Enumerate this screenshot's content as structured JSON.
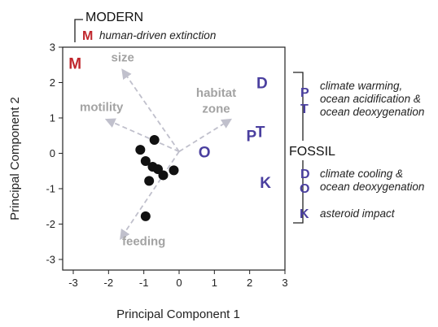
{
  "chart_data": {
    "type": "scatter",
    "xlabel": "Principal Component 1",
    "ylabel": "Principal Component 2",
    "xlim": [
      -3.3,
      3.0
    ],
    "ylim": [
      -3.3,
      3.0
    ],
    "xticks": [
      -3,
      -2,
      -1,
      0,
      1,
      2,
      3
    ],
    "yticks": [
      -3,
      -2,
      -1,
      0,
      1,
      2,
      3
    ],
    "grid": false,
    "points": [
      {
        "x": -0.7,
        "y": 0.38
      },
      {
        "x": -1.1,
        "y": 0.1
      },
      {
        "x": -0.95,
        "y": -0.22
      },
      {
        "x": -0.75,
        "y": -0.38
      },
      {
        "x": -0.6,
        "y": -0.45
      },
      {
        "x": -0.45,
        "y": -0.62
      },
      {
        "x": -0.15,
        "y": -0.48
      },
      {
        "x": -0.85,
        "y": -0.78
      },
      {
        "x": -0.95,
        "y": -1.78
      }
    ],
    "loadings": {
      "origin": {
        "x": 0.0,
        "y": 0.05
      },
      "color": "#c0c0cc",
      "label_color": "#a3a3a3",
      "vectors": [
        {
          "label": "size",
          "x": -1.6,
          "y": 2.35,
          "lx": -1.6,
          "ly": 2.6
        },
        {
          "label": "motility",
          "x": -2.05,
          "y": 0.95,
          "lx": -2.2,
          "ly": 1.2
        },
        {
          "label": "habitat",
          "x": 1.45,
          "y": 0.95,
          "lx": 1.05,
          "ly": 1.6
        },
        {
          "label": "zone",
          "x": null,
          "y": null,
          "lx": 1.05,
          "ly": 1.15
        },
        {
          "label": "feeding",
          "x": -1.65,
          "y": -2.4,
          "lx": -1.0,
          "ly": -2.6
        }
      ]
    },
    "events": [
      {
        "letter": "M",
        "x": -2.95,
        "y": 2.55,
        "color": "#c0272d"
      },
      {
        "letter": "D",
        "x": 2.35,
        "y": 2.0,
        "color": "#4a3f9f"
      },
      {
        "letter": "P",
        "x": 2.05,
        "y": 0.5,
        "color": "#4a3f9f"
      },
      {
        "letter": "T",
        "x": 2.3,
        "y": 0.62,
        "color": "#4a3f9f"
      },
      {
        "letter": "O",
        "x": 0.72,
        "y": 0.05,
        "color": "#4a3f9f"
      },
      {
        "letter": "K",
        "x": 2.45,
        "y": -0.82,
        "color": "#4a3f9f"
      }
    ]
  },
  "legend": {
    "modern_header": "MODERN",
    "modern_letter": "M",
    "modern_note": "human-driven extinction",
    "fossil_header": "FOSSIL",
    "groups": [
      {
        "letters": [
          "P",
          "T"
        ],
        "notes": [
          "climate warming,",
          "ocean acidification &",
          "ocean deoxygenation"
        ]
      },
      {
        "letters": [
          "D",
          "O"
        ],
        "notes": [
          "climate cooling &",
          "ocean deoxygenation"
        ]
      },
      {
        "letters": [
          "K"
        ],
        "notes": [
          "asteroid impact"
        ]
      }
    ],
    "colors": {
      "modern": "#c0272d",
      "fossil": "#4a3f9f"
    }
  }
}
